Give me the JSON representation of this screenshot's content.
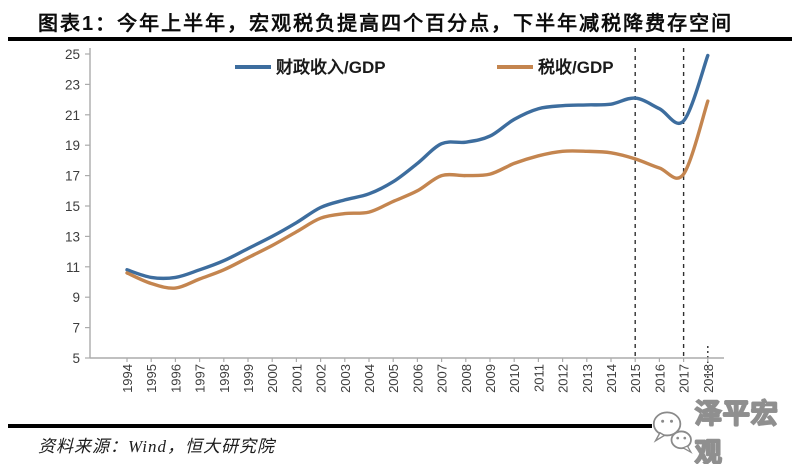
{
  "header": {
    "title": "图表1：今年上半年，宏观税负提高四个百分点，下半年减税降费存空间"
  },
  "footer": {
    "source": "资料来源：Wind，恒大研究院",
    "watermark": "泽平宏观",
    "watermark_icon": "wechat-icon"
  },
  "colors": {
    "fiscal_line": "#3D6D9E",
    "tax_line": "#C4854F",
    "axis": "#ABABAB",
    "tick_label": "#3D3D3D",
    "dashed_line": "#2F2F2F",
    "rule": "#000000"
  },
  "chart_data": {
    "type": "line",
    "title": "",
    "xlabel": "",
    "ylabel": "",
    "x": [
      1994,
      1995,
      1996,
      1997,
      1998,
      1999,
      2000,
      2001,
      2002,
      2003,
      2004,
      2005,
      2006,
      2007,
      2008,
      2009,
      2010,
      2011,
      2012,
      2013,
      2014,
      2015,
      2016,
      2017,
      2018
    ],
    "series": [
      {
        "name": "财政收入/GDP",
        "color": "#3D6D9E",
        "values": [
          10.8,
          10.3,
          10.3,
          10.8,
          11.4,
          12.2,
          13.0,
          13.9,
          14.9,
          15.4,
          15.8,
          16.6,
          17.8,
          19.1,
          19.2,
          19.6,
          20.7,
          21.4,
          21.6,
          21.65,
          21.7,
          22.1,
          21.4,
          20.6,
          24.9
        ]
      },
      {
        "name": "税收/GDP",
        "color": "#C4854F",
        "values": [
          10.6,
          9.9,
          9.6,
          10.2,
          10.8,
          11.6,
          12.4,
          13.3,
          14.2,
          14.5,
          14.6,
          15.3,
          16.0,
          17.0,
          17.0,
          17.1,
          17.8,
          18.3,
          18.6,
          18.6,
          18.5,
          18.1,
          17.5,
          17.1,
          21.9
        ]
      }
    ],
    "ylim": [
      5,
      25
    ],
    "yticks": [
      25,
      23,
      21,
      19,
      17,
      15,
      13,
      11,
      9,
      7,
      5
    ],
    "grid": false,
    "legend_position": "top-center",
    "vlines_dashed_at_x": [
      2015,
      2017
    ],
    "vline_dotted_at_x": 2018
  }
}
